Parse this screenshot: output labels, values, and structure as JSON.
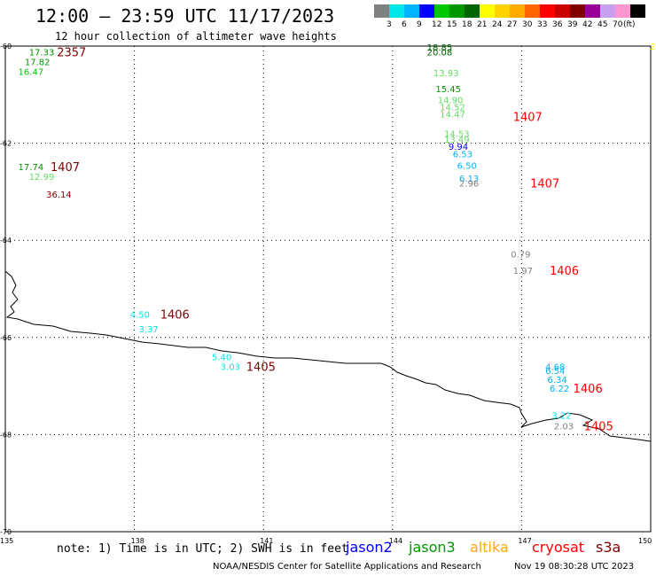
{
  "title": "12:00 — 23:59 UTC 11/17/2023",
  "subtitle": "12 hour collection of altimeter wave heights",
  "colorbar": {
    "ticks": [
      "3",
      "6",
      "9",
      "12",
      "15",
      "18",
      "21",
      "24",
      "27",
      "30",
      "33",
      "36",
      "39",
      "42",
      "45",
      "70"
    ],
    "unit": "(ft)",
    "colors": [
      "#808080",
      "#00e5e5",
      "#00b4ff",
      "#0000ff",
      "#00c800",
      "#009600",
      "#006400",
      "#ffff00",
      "#ffd200",
      "#ffaa00",
      "#ff6400",
      "#ff0000",
      "#c80000",
      "#800000",
      "#960096",
      "#c8a0f0",
      "#ff96d2",
      "#000000"
    ]
  },
  "map": {
    "lat_labels": [
      {
        "lat": -60,
        "text": "-60"
      },
      {
        "lat": -62,
        "text": "-62"
      },
      {
        "lat": -64,
        "text": "-64"
      },
      {
        "lat": -66,
        "text": "-66"
      },
      {
        "lat": -68,
        "text": "-68"
      },
      {
        "lat": -70,
        "text": "-70"
      }
    ],
    "lon_labels": [
      {
        "lon": 135,
        "text": "135"
      },
      {
        "lon": 138,
        "text": "138"
      },
      {
        "lon": 141,
        "text": "141"
      },
      {
        "lon": 144,
        "text": "144"
      },
      {
        "lon": 147,
        "text": "147"
      },
      {
        "lon": 150,
        "text": "150"
      }
    ],
    "corner_label": "2",
    "observations": [
      {
        "lon": 135.55,
        "lat": -60.12,
        "text": "17.33",
        "color": "#009600"
      },
      {
        "lon": 135.45,
        "lat": -60.32,
        "text": "17.82",
        "color": "#009600"
      },
      {
        "lon": 135.3,
        "lat": -60.52,
        "text": "16.47",
        "color": "#00c800"
      },
      {
        "lon": 144.8,
        "lat": -60.02,
        "text": "18.85",
        "color": "#006400"
      },
      {
        "lon": 144.8,
        "lat": -60.12,
        "text": "20.08",
        "color": "#006400"
      },
      {
        "lon": 144.95,
        "lat": -60.55,
        "text": "13.93",
        "color": "#64dc64"
      },
      {
        "lon": 145.0,
        "lat": -60.88,
        "text": "15.45",
        "color": "#009600"
      },
      {
        "lon": 145.05,
        "lat": -61.1,
        "text": "14.90",
        "color": "#64dc64"
      },
      {
        "lon": 145.1,
        "lat": -61.25,
        "text": "14.52",
        "color": "#64dc64"
      },
      {
        "lon": 145.1,
        "lat": -61.4,
        "text": "14.47",
        "color": "#64dc64"
      },
      {
        "lon": 145.2,
        "lat": -61.8,
        "text": "14.53",
        "color": "#64dc64"
      },
      {
        "lon": 145.2,
        "lat": -61.92,
        "text": "13.49",
        "color": "#64dc64"
      },
      {
        "lon": 145.3,
        "lat": -62.06,
        "text": "9.94",
        "color": "#0000ff"
      },
      {
        "lon": 145.4,
        "lat": -62.22,
        "text": "6.53",
        "color": "#00b4ff"
      },
      {
        "lon": 145.5,
        "lat": -62.45,
        "text": "6.50",
        "color": "#00b4ff"
      },
      {
        "lon": 145.55,
        "lat": -62.72,
        "text": "6.13",
        "color": "#00b4ff"
      },
      {
        "lon": 145.55,
        "lat": -62.82,
        "text": "2.96",
        "color": "#808080"
      },
      {
        "lon": 135.3,
        "lat": -62.48,
        "text": "17.74",
        "color": "#009600"
      },
      {
        "lon": 135.55,
        "lat": -62.68,
        "text": "12.99",
        "color": "#64dc64"
      },
      {
        "lon": 135.95,
        "lat": -63.05,
        "text": "36.14",
        "color": "#800000"
      },
      {
        "lon": 146.75,
        "lat": -64.28,
        "text": "0.79",
        "color": "#808080"
      },
      {
        "lon": 146.8,
        "lat": -64.62,
        "text": "1.97",
        "color": "#808080"
      },
      {
        "lon": 137.9,
        "lat": -65.52,
        "text": "4.50",
        "color": "#00e5e5"
      },
      {
        "lon": 138.1,
        "lat": -65.82,
        "text": "3.37",
        "color": "#00e5e5"
      },
      {
        "lon": 139.8,
        "lat": -66.4,
        "text": "5.40",
        "color": "#00e5e5"
      },
      {
        "lon": 140.0,
        "lat": -66.6,
        "text": "3.03",
        "color": "#00e5e5"
      },
      {
        "lon": 147.55,
        "lat": -66.6,
        "text": "4.68",
        "color": "#00b4ff"
      },
      {
        "lon": 147.55,
        "lat": -66.68,
        "text": "6.54",
        "color": "#00b4ff"
      },
      {
        "lon": 147.6,
        "lat": -66.86,
        "text": "6.34",
        "color": "#00b4ff"
      },
      {
        "lon": 147.65,
        "lat": -67.04,
        "text": "6.22",
        "color": "#00b4ff"
      },
      {
        "lon": 147.7,
        "lat": -67.6,
        "text": "3.22",
        "color": "#00e5e5"
      },
      {
        "lon": 147.75,
        "lat": -67.82,
        "text": "2.03",
        "color": "#808080"
      }
    ],
    "time_labels": [
      {
        "lon": 136.2,
        "lat": -60.12,
        "text": "2357",
        "color": "#800000"
      },
      {
        "lon": 146.8,
        "lat": -61.45,
        "text": "1407",
        "color": "#ff0000"
      },
      {
        "lon": 136.05,
        "lat": -62.48,
        "text": "1407",
        "color": "#800000"
      },
      {
        "lon": 147.2,
        "lat": -62.82,
        "text": "1407",
        "color": "#ff0000"
      },
      {
        "lon": 147.65,
        "lat": -64.62,
        "text": "1406",
        "color": "#ff0000"
      },
      {
        "lon": 138.6,
        "lat": -65.52,
        "text": "1406",
        "color": "#800000"
      },
      {
        "lon": 140.6,
        "lat": -66.6,
        "text": "1405",
        "color": "#800000"
      },
      {
        "lon": 148.2,
        "lat": -67.04,
        "text": "1406",
        "color": "#ff0000"
      },
      {
        "lon": 148.45,
        "lat": -67.82,
        "text": "1405",
        "color": "#ff0000"
      }
    ]
  },
  "footer": {
    "note": "note: 1) Time is in UTC; 2) SWH is in feet",
    "satellites": [
      {
        "name": "jason2",
        "color": "#0000ff"
      },
      {
        "name": "jason3",
        "color": "#009600"
      },
      {
        "name": "altika",
        "color": "#ffaa00"
      },
      {
        "name": "cryosat",
        "color": "#ff0000"
      },
      {
        "name": "s3a",
        "color": "#800000"
      }
    ],
    "credit": "NOAA/NESDIS Center for Satellite Applications and Research",
    "generated": "Nov 19 08:30:28 UTC 2023"
  }
}
